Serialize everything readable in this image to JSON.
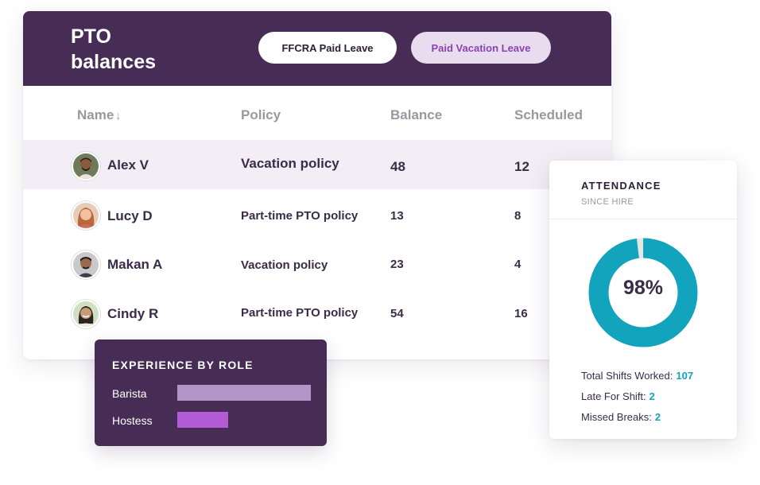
{
  "pto": {
    "title": "PTO balances",
    "tabs": [
      {
        "label": "FFCRA Paid Leave",
        "active": false
      },
      {
        "label": "Paid Vacation Leave",
        "active": true
      }
    ],
    "columns": {
      "name": "Name",
      "policy": "Policy",
      "balance": "Balance",
      "scheduled": "Scheduled"
    },
    "rows": [
      {
        "name": "Alex V",
        "policy": "Vacation policy",
        "balance": "48",
        "scheduled": "12",
        "selected": true
      },
      {
        "name": "Lucy D",
        "policy": "Part-time PTO policy",
        "balance": "13",
        "scheduled": "8"
      },
      {
        "name": "Makan A",
        "policy": "Vacation policy",
        "balance": "23",
        "scheduled": "4"
      },
      {
        "name": "Cindy R",
        "policy": "Part-time PTO policy",
        "balance": "54",
        "scheduled": "16"
      }
    ]
  },
  "experience": {
    "title": "EXPERIENCE BY ROLE",
    "roles": [
      {
        "label": "Barista",
        "value": 1.0,
        "color": "#b195c6"
      },
      {
        "label": "Hostess",
        "value": 0.38,
        "color": "#b45cd6"
      }
    ]
  },
  "attendance": {
    "title": "ATTENDANCE",
    "subtitle": "SINCE HIRE",
    "percent_label": "98%",
    "percent": 98,
    "ring_color": "#12a3bd",
    "ring_remainder_color": "#e6e6e6",
    "stats": [
      {
        "label": "Total Shifts Worked:",
        "value": "107"
      },
      {
        "label": "Late For Shift:",
        "value": "2"
      },
      {
        "label": "Missed Breaks:",
        "value": "2"
      }
    ]
  },
  "colors": {
    "brand_purple": "#472d55",
    "accent_teal": "#12a3bd",
    "selected_row": "#f3eef5"
  }
}
